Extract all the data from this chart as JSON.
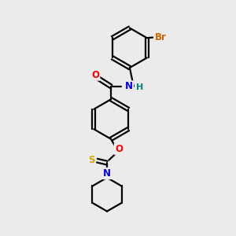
{
  "background_color": "#ebebeb",
  "bond_color": "#000000",
  "atom_colors": {
    "O": "#ff0000",
    "N": "#0000ee",
    "S": "#ccaa00",
    "Br": "#cc6600",
    "H": "#008080",
    "C": "#000000"
  },
  "figsize": [
    3.0,
    3.0
  ],
  "dpi": 100,
  "xlim": [
    0,
    10
  ],
  "ylim": [
    0,
    10
  ],
  "ring_r": 0.85,
  "lw": 1.6,
  "fontsize": 8.5
}
